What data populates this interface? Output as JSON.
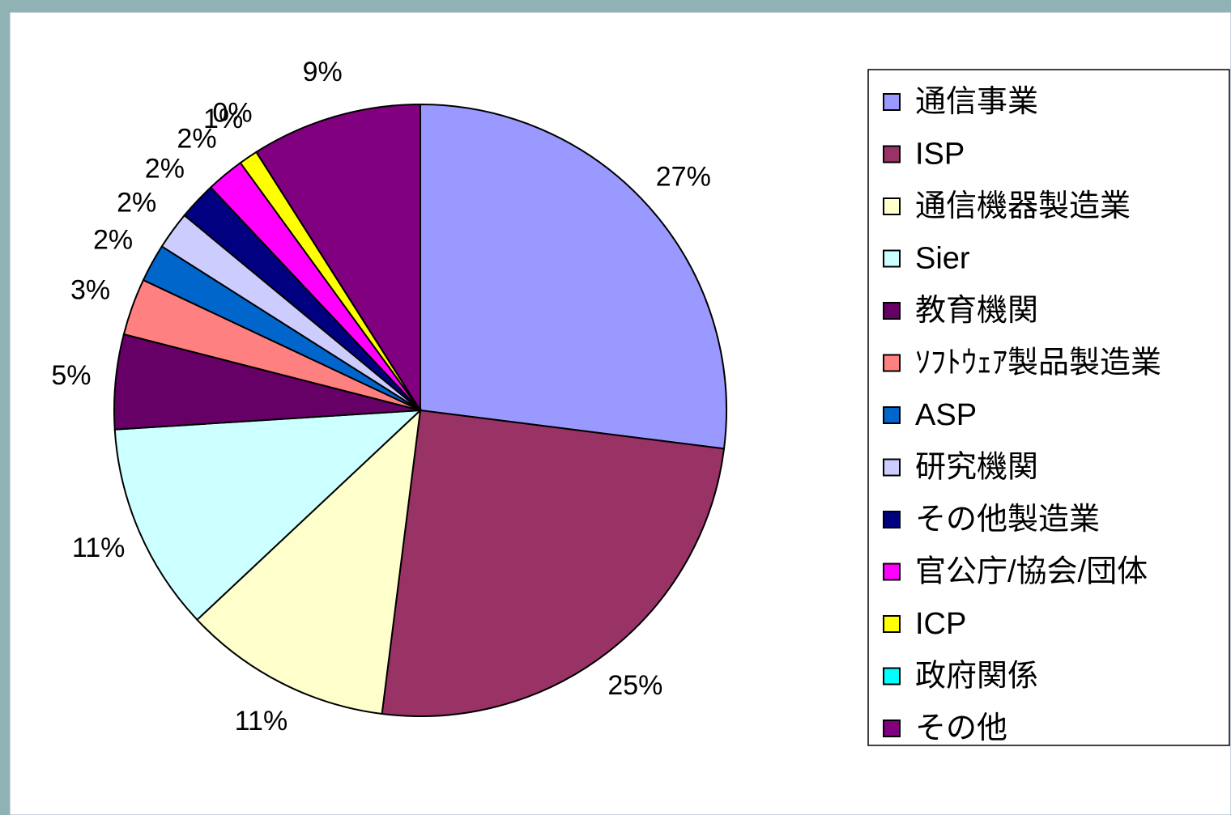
{
  "chart_data": {
    "type": "pie",
    "categories": [
      "通信事業",
      "ISP",
      "通信機器製造業",
      "Sier",
      "教育機関",
      "ｿﾌﾄｳｪｱ製品製造業",
      "ASP",
      "研究機関",
      "その他製造業",
      "官公庁/協会/団体",
      "ICP",
      "政府関係",
      "その他"
    ],
    "values": [
      27,
      25,
      11,
      11,
      5,
      3,
      2,
      2,
      2,
      2,
      1,
      0,
      9
    ],
    "value_labels": [
      "27%",
      "25%",
      "11%",
      "11%",
      "5%",
      "3%",
      "2%",
      "2%",
      "2%",
      "2%",
      "1%",
      "0%",
      "9%"
    ],
    "colors": [
      "#9999ff",
      "#993366",
      "#ffffcc",
      "#ccffff",
      "#660066",
      "#ff8080",
      "#0066cc",
      "#ccccff",
      "#000080",
      "#ff00ff",
      "#ffff00",
      "#00ffff",
      "#800080"
    ],
    "legend": "right"
  }
}
